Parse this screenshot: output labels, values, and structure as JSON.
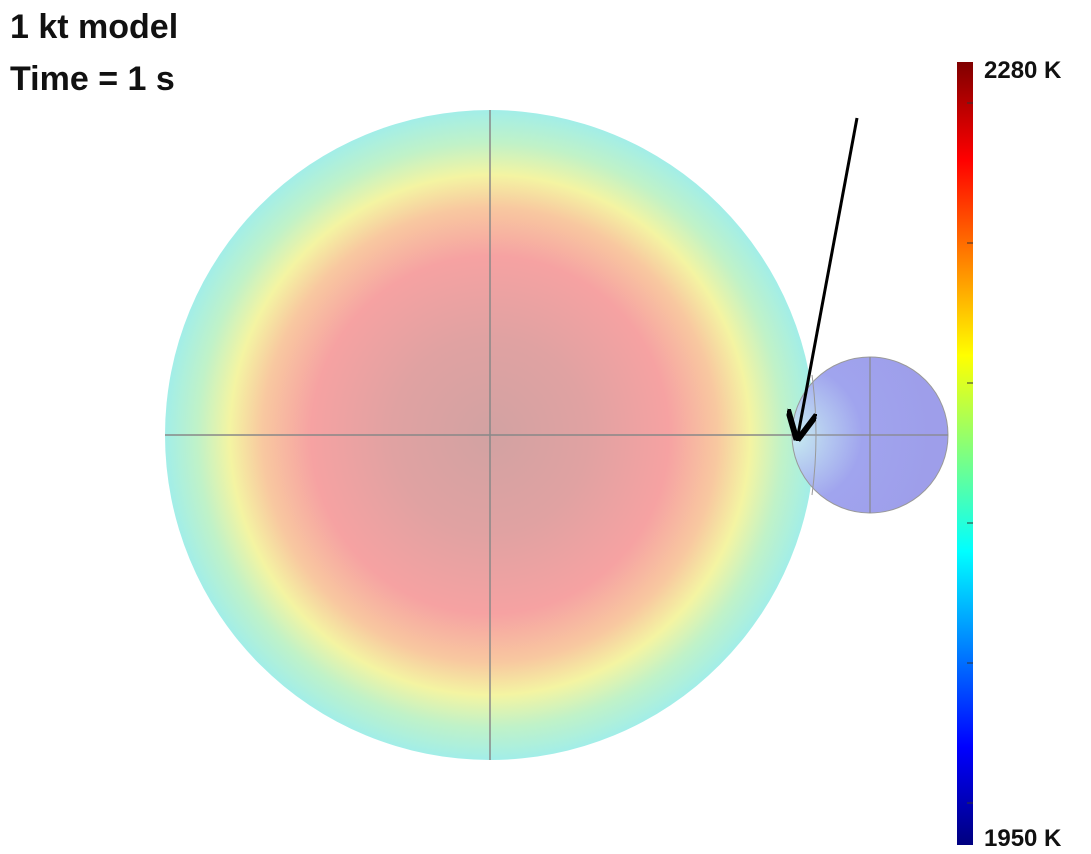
{
  "title": {
    "line1": "1 kt model",
    "line2": "Time = 1 s"
  },
  "colorbar": {
    "max_label": "2280 K",
    "min_label": "1950 K"
  }
}
